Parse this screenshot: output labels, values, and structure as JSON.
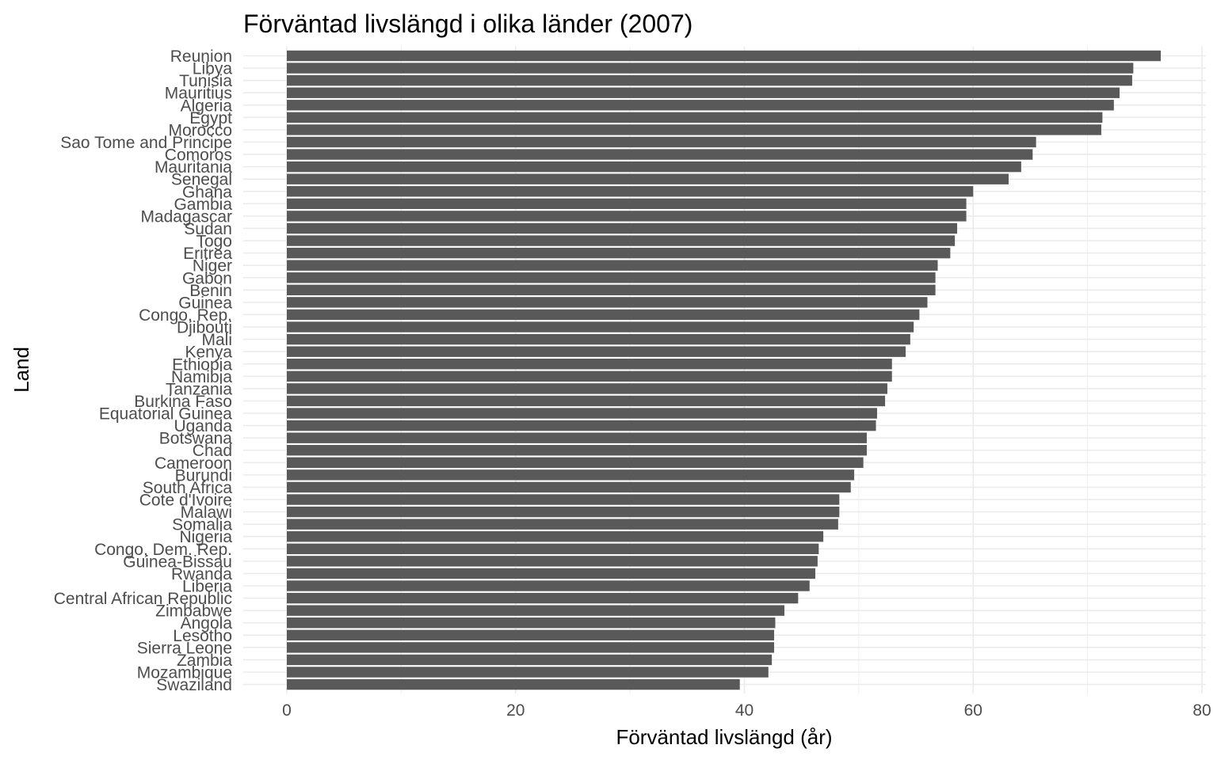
{
  "chart_data": {
    "type": "bar",
    "orientation": "horizontal",
    "title": "Förväntad livslängd i olika länder (2007)",
    "xlabel": "Förväntad livslängd (år)",
    "ylabel": "Land",
    "xlim": [
      0,
      80
    ],
    "xticks": [
      0,
      20,
      40,
      60,
      80
    ],
    "grid": true,
    "bar_color": "#595959",
    "grid_color": "#ebebeb",
    "categories": [
      "Reunion",
      "Libya",
      "Tunisia",
      "Mauritius",
      "Algeria",
      "Egypt",
      "Morocco",
      "Sao Tome and Principe",
      "Comoros",
      "Mauritania",
      "Senegal",
      "Ghana",
      "Gambia",
      "Madagascar",
      "Sudan",
      "Togo",
      "Eritrea",
      "Niger",
      "Gabon",
      "Benin",
      "Guinea",
      "Congo, Rep.",
      "Djibouti",
      "Mali",
      "Kenya",
      "Ethiopia",
      "Namibia",
      "Tanzania",
      "Burkina Faso",
      "Equatorial Guinea",
      "Uganda",
      "Botswana",
      "Chad",
      "Cameroon",
      "Burundi",
      "South Africa",
      "Cote d'Ivoire",
      "Malawi",
      "Somalia",
      "Nigeria",
      "Congo, Dem. Rep.",
      "Guinea-Bissau",
      "Rwanda",
      "Liberia",
      "Central African Republic",
      "Zimbabwe",
      "Angola",
      "Lesotho",
      "Sierra Leone",
      "Zambia",
      "Mozambique",
      "Swaziland"
    ],
    "values": [
      76.4,
      74.0,
      73.9,
      72.8,
      72.3,
      71.3,
      71.2,
      65.5,
      65.2,
      64.2,
      63.1,
      60.0,
      59.4,
      59.4,
      58.6,
      58.4,
      58.0,
      56.9,
      56.7,
      56.7,
      56.0,
      55.3,
      54.8,
      54.5,
      54.1,
      52.9,
      52.9,
      52.5,
      52.3,
      51.6,
      51.5,
      50.7,
      50.7,
      50.4,
      49.6,
      49.3,
      48.3,
      48.3,
      48.2,
      46.9,
      46.5,
      46.4,
      46.2,
      45.7,
      44.7,
      43.5,
      42.7,
      42.6,
      42.6,
      42.4,
      42.1,
      39.6
    ]
  }
}
